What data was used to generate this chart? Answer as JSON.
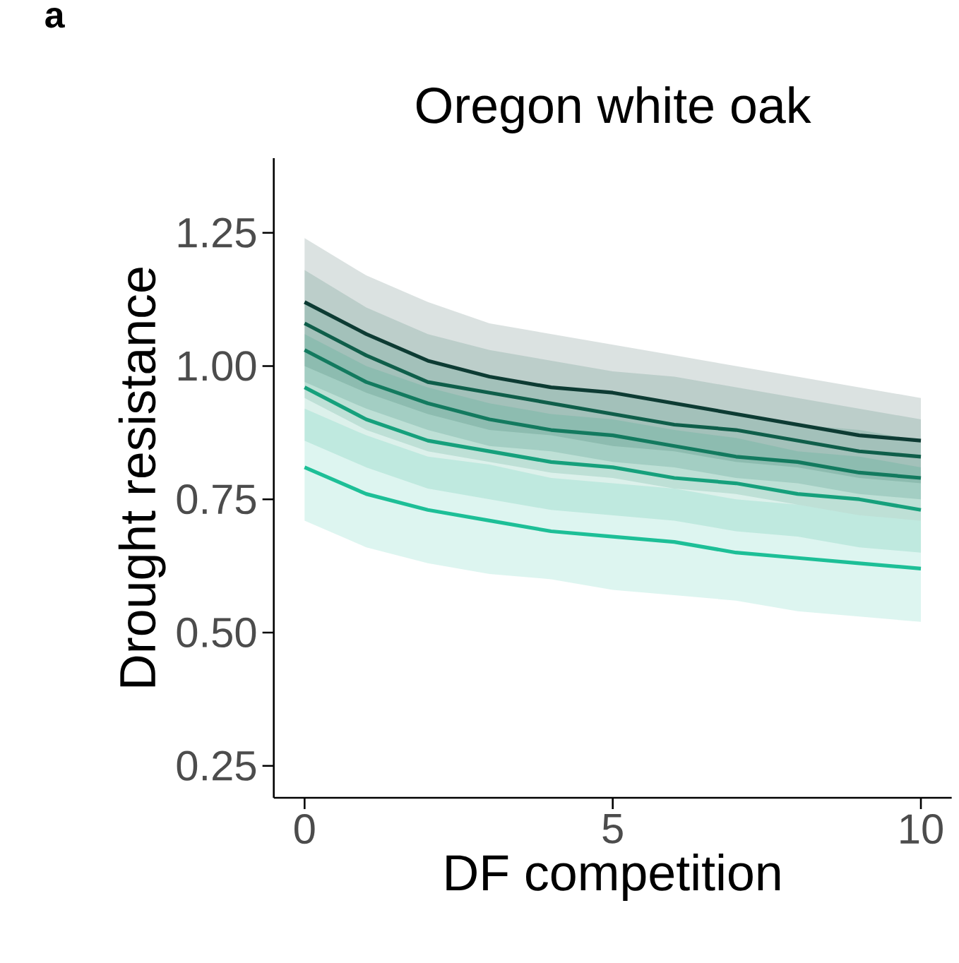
{
  "chart_data": {
    "type": "line",
    "title": "Oregon white oak",
    "xlabel": "DF competition",
    "ylabel": "Drought resistance",
    "annotations": [
      "a"
    ],
    "x": [
      0,
      1,
      2,
      3,
      4,
      5,
      6,
      7,
      8,
      9,
      10
    ],
    "series": [
      {
        "color": "#0d3b33",
        "values": [
          1.12,
          1.06,
          1.01,
          0.98,
          0.96,
          0.95,
          0.93,
          0.91,
          0.89,
          0.87,
          0.86
        ],
        "lower": [
          1.0,
          0.95,
          0.91,
          0.88,
          0.87,
          0.85,
          0.84,
          0.82,
          0.81,
          0.79,
          0.78
        ],
        "upper": [
          1.24,
          1.17,
          1.12,
          1.08,
          1.06,
          1.04,
          1.02,
          1.0,
          0.98,
          0.96,
          0.94
        ]
      },
      {
        "color": "#0f5e4a",
        "values": [
          1.08,
          1.02,
          0.97,
          0.95,
          0.93,
          0.91,
          0.89,
          0.88,
          0.86,
          0.84,
          0.83
        ],
        "lower": [
          0.97,
          0.92,
          0.88,
          0.85,
          0.84,
          0.82,
          0.81,
          0.79,
          0.78,
          0.76,
          0.75
        ],
        "upper": [
          1.18,
          1.11,
          1.06,
          1.03,
          1.01,
          0.99,
          0.98,
          0.96,
          0.94,
          0.92,
          0.9
        ]
      },
      {
        "color": "#137a5f",
        "values": [
          1.03,
          0.97,
          0.93,
          0.9,
          0.88,
          0.87,
          0.85,
          0.83,
          0.82,
          0.8,
          0.79
        ],
        "lower": [
          0.94,
          0.88,
          0.84,
          0.82,
          0.8,
          0.79,
          0.77,
          0.76,
          0.74,
          0.72,
          0.71
        ],
        "upper": [
          1.12,
          1.06,
          1.01,
          0.98,
          0.96,
          0.95,
          0.93,
          0.91,
          0.89,
          0.88,
          0.86
        ]
      },
      {
        "color": "#16a07c",
        "values": [
          0.96,
          0.9,
          0.86,
          0.84,
          0.82,
          0.81,
          0.79,
          0.78,
          0.76,
          0.75,
          0.73
        ],
        "lower": [
          0.86,
          0.81,
          0.77,
          0.75,
          0.73,
          0.72,
          0.71,
          0.69,
          0.68,
          0.66,
          0.65
        ],
        "upper": [
          1.06,
          1.0,
          0.96,
          0.93,
          0.91,
          0.9,
          0.88,
          0.865,
          0.84,
          0.83,
          0.81
        ]
      },
      {
        "color": "#1dbf97",
        "values": [
          0.81,
          0.76,
          0.73,
          0.71,
          0.69,
          0.68,
          0.67,
          0.65,
          0.64,
          0.63,
          0.62
        ],
        "lower": [
          0.71,
          0.66,
          0.63,
          0.61,
          0.6,
          0.58,
          0.57,
          0.56,
          0.54,
          0.53,
          0.52
        ],
        "upper": [
          0.92,
          0.87,
          0.83,
          0.815,
          0.79,
          0.78,
          0.77,
          0.75,
          0.74,
          0.72,
          0.71
        ]
      }
    ],
    "xlim": [
      -0.5,
      10.5
    ],
    "ylim": [
      0.19,
      1.39
    ],
    "xticks": [
      0,
      5,
      10
    ],
    "yticks": [
      {
        "value": 0.25,
        "label": "0.25"
      },
      {
        "value": 0.5,
        "label": "0.50"
      },
      {
        "value": 0.75,
        "label": "0.75"
      },
      {
        "value": 1.0,
        "label": "1.00"
      },
      {
        "value": 1.25,
        "label": "1.25"
      }
    ],
    "grid": false,
    "legend": false,
    "marker": "none",
    "line_style": "solid"
  }
}
